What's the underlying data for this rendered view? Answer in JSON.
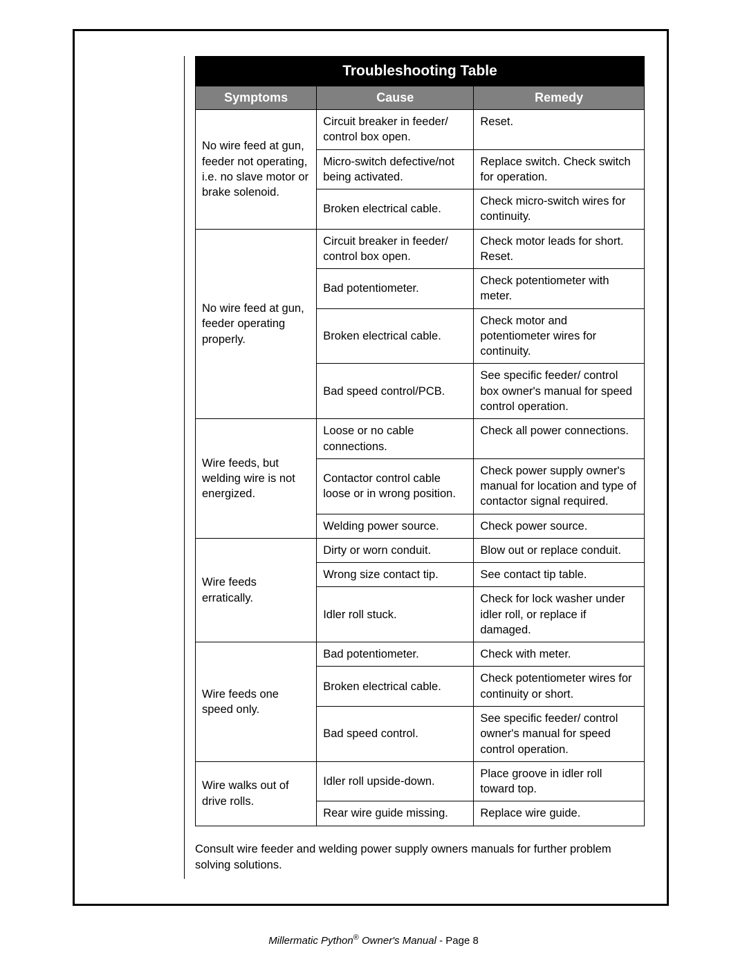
{
  "table": {
    "title": "Troubleshooting Table",
    "headers": {
      "symptom": "Symptoms",
      "cause": "Cause",
      "remedy": "Remedy"
    },
    "groups": [
      {
        "symptom": "No wire feed at gun, feeder not operating, i.e. no slave motor or brake solenoid.",
        "rows": [
          {
            "cause": "Circuit breaker in feeder/ control box open.",
            "remedy": "Reset."
          },
          {
            "cause": "Micro-switch defective/not being activated.",
            "remedy": "Replace switch.  Check switch for operation."
          },
          {
            "cause": "Broken electrical cable.",
            "remedy": "Check micro-switch wires for continuity."
          }
        ]
      },
      {
        "symptom": "No wire feed at gun, feeder operating properly.",
        "rows": [
          {
            "cause": "Circuit breaker in feeder/ control box open.",
            "remedy": "Check motor leads for short.  Reset."
          },
          {
            "cause": "Bad potentiometer.",
            "remedy": "Check potentiometer with meter."
          },
          {
            "cause": "Broken electrical cable.",
            "remedy": "Check motor and potentiometer wires for continuity."
          },
          {
            "cause": "Bad speed control/PCB.",
            "remedy": "See specific feeder/ control box owner's manual for speed control operation."
          }
        ]
      },
      {
        "symptom": "Wire feeds, but welding wire is not energized.",
        "rows": [
          {
            "cause": "Loose or no cable connections.",
            "remedy": "Check all power connections."
          },
          {
            "cause": "Contactor control cable loose or in wrong position.",
            "remedy": "Check power supply owner's manual for location and type of contactor signal required."
          },
          {
            "cause": "Welding power source.",
            "remedy": "Check power source."
          }
        ]
      },
      {
        "symptom": "Wire feeds erratically.",
        "rows": [
          {
            "cause": "Dirty or worn conduit.",
            "remedy": "Blow out or replace conduit."
          },
          {
            "cause": "Wrong size contact tip.",
            "remedy": "See contact tip table."
          },
          {
            "cause": "Idler roll stuck.",
            "remedy": "Check for lock washer under idler roll, or replace if damaged."
          }
        ]
      },
      {
        "symptom": "Wire feeds one speed only.",
        "rows": [
          {
            "cause": "Bad potentiometer.",
            "remedy": "Check with meter."
          },
          {
            "cause": "Broken electrical cable.",
            "remedy": "Check potentiometer wires for continuity or short."
          },
          {
            "cause": "Bad speed control.",
            "remedy": "See specific feeder/ control owner's manual for speed control operation."
          }
        ]
      },
      {
        "symptom": "Wire walks out of drive rolls.",
        "rows": [
          {
            "cause": "Idler roll upside-down.",
            "remedy": "Place groove in idler roll toward top."
          },
          {
            "cause": "Rear wire guide missing.",
            "remedy": "Replace wire guide."
          }
        ]
      }
    ]
  },
  "footnote": "Consult wire feeder and welding power supply owners manuals for further problem solving solutions.",
  "footer": {
    "product": "Millermatic Python",
    "reg": "®",
    "manual": " Owner's Manual",
    "page_label": " - Page 8"
  },
  "styling": {
    "title_bg": "#000000",
    "title_color": "#ffffff",
    "header_bg": "#808080",
    "header_color": "#ffffff",
    "border_color": "#000000",
    "body_fontsize": 16.5,
    "title_fontsize": 21,
    "header_fontsize": 18
  }
}
